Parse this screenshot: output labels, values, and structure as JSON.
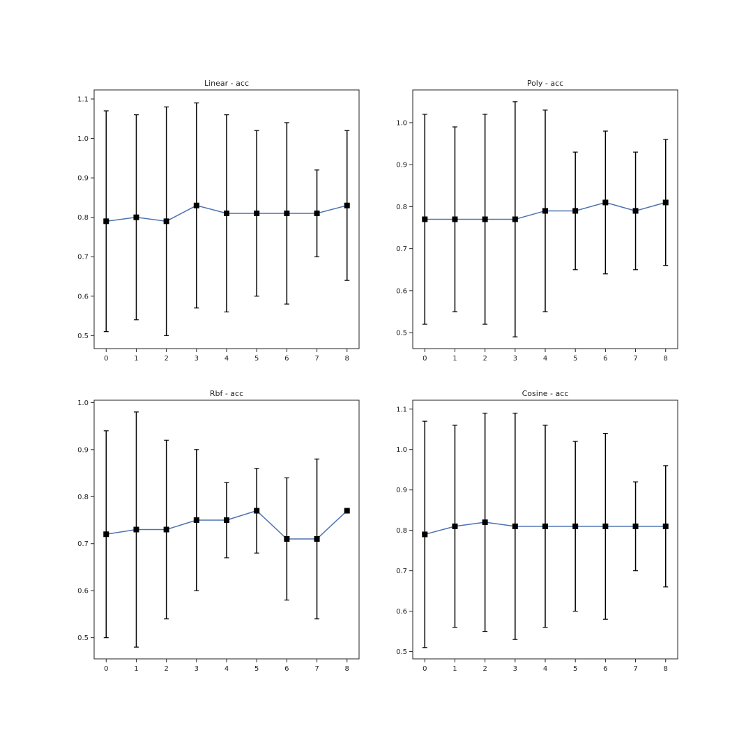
{
  "colors": {
    "line": "#4c72b0",
    "marker": "#000000",
    "errorbar": "#000000",
    "axes": "#222222",
    "background": "#ffffff"
  },
  "chart_data": [
    {
      "type": "line",
      "title": "Linear - acc",
      "x": [
        0,
        1,
        2,
        3,
        4,
        5,
        6,
        7,
        8
      ],
      "y": [
        0.79,
        0.8,
        0.79,
        0.83,
        0.81,
        0.81,
        0.81,
        0.81,
        0.83
      ],
      "error_low": [
        0.51,
        0.54,
        0.5,
        0.57,
        0.56,
        0.6,
        0.58,
        0.7,
        0.64
      ],
      "error_high": [
        1.07,
        1.06,
        1.08,
        1.09,
        1.06,
        1.02,
        1.04,
        0.92,
        1.02
      ],
      "xlim": [
        -0.4,
        8.4
      ],
      "ylim": [
        0.467,
        1.123
      ],
      "yticks": [
        "0.5",
        "0.6",
        "0.7",
        "0.8",
        "0.9",
        "1.0",
        "1.1"
      ],
      "xticks": [
        "0",
        "1",
        "2",
        "3",
        "4",
        "5",
        "6",
        "7",
        "8"
      ],
      "marker": "square",
      "grid": false
    },
    {
      "type": "line",
      "title": "Poly - acc",
      "x": [
        0,
        1,
        2,
        3,
        4,
        5,
        6,
        7,
        8
      ],
      "y": [
        0.77,
        0.77,
        0.77,
        0.77,
        0.79,
        0.79,
        0.81,
        0.79,
        0.81
      ],
      "error_low": [
        0.52,
        0.55,
        0.52,
        0.49,
        0.55,
        0.65,
        0.64,
        0.65,
        0.66
      ],
      "error_high": [
        1.02,
        0.99,
        1.02,
        1.05,
        1.03,
        0.93,
        0.98,
        0.93,
        0.96
      ],
      "xlim": [
        -0.4,
        8.4
      ],
      "ylim": [
        0.462,
        1.078
      ],
      "yticks": [
        "0.5",
        "0.6",
        "0.7",
        "0.8",
        "0.9",
        "1.0"
      ],
      "xticks": [
        "0",
        "1",
        "2",
        "3",
        "4",
        "5",
        "6",
        "7",
        "8"
      ],
      "marker": "square",
      "grid": false
    },
    {
      "type": "line",
      "title": "Rbf - acc",
      "x": [
        0,
        1,
        2,
        3,
        4,
        5,
        6,
        7,
        8
      ],
      "y": [
        0.72,
        0.73,
        0.73,
        0.75,
        0.75,
        0.77,
        0.71,
        0.71,
        0.77
      ],
      "error_low": [
        0.5,
        0.48,
        0.54,
        0.6,
        0.67,
        0.68,
        0.58,
        0.54,
        0.77
      ],
      "error_high": [
        0.94,
        0.98,
        0.92,
        0.9,
        0.83,
        0.86,
        0.84,
        0.88,
        0.77
      ],
      "xlim": [
        -0.4,
        8.4
      ],
      "ylim": [
        0.455,
        1.005
      ],
      "yticks": [
        "0.5",
        "0.6",
        "0.7",
        "0.8",
        "0.9",
        "1.0"
      ],
      "xticks": [
        "0",
        "1",
        "2",
        "3",
        "4",
        "5",
        "6",
        "7",
        "8"
      ],
      "marker": "square",
      "grid": false
    },
    {
      "type": "line",
      "title": "Cosine - acc",
      "x": [
        0,
        1,
        2,
        3,
        4,
        5,
        6,
        7,
        8
      ],
      "y": [
        0.79,
        0.81,
        0.82,
        0.81,
        0.81,
        0.81,
        0.81,
        0.81,
        0.81
      ],
      "error_low": [
        0.51,
        0.56,
        0.55,
        0.53,
        0.56,
        0.6,
        0.58,
        0.7,
        0.66
      ],
      "error_high": [
        1.07,
        1.06,
        1.09,
        1.09,
        1.06,
        1.02,
        1.04,
        0.92,
        0.96
      ],
      "xlim": [
        -0.4,
        8.4
      ],
      "ylim": [
        0.482,
        1.122
      ],
      "yticks": [
        "0.5",
        "0.6",
        "0.7",
        "0.8",
        "0.9",
        "1.0",
        "1.1"
      ],
      "xticks": [
        "0",
        "1",
        "2",
        "3",
        "4",
        "5",
        "6",
        "7",
        "8"
      ],
      "marker": "square",
      "grid": false
    }
  ]
}
